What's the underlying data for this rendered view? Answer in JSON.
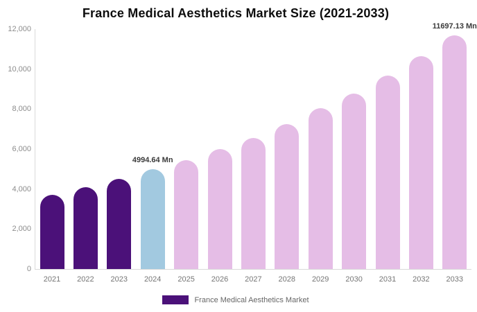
{
  "title": "France Medical Aesthetics Market Size (2021-2033)",
  "chart_data": {
    "type": "bar",
    "title": "France Medical Aesthetics Market Size (2021-2033)",
    "categories": [
      "2021",
      "2022",
      "2023",
      "2024",
      "2025",
      "2026",
      "2027",
      "2028",
      "2029",
      "2030",
      "2031",
      "2032",
      "2033"
    ],
    "values": [
      3700,
      4080,
      4500,
      4994.64,
      5450,
      6000,
      6550,
      7250,
      8030,
      8790,
      9670,
      10660,
      11697.13
    ],
    "series_name": "France Medical Aesthetics Market",
    "xlabel": "",
    "ylabel": "",
    "ylim": [
      0,
      12000
    ],
    "ytick_step": 2000,
    "ytick_labels": [
      "0",
      "2,000",
      "4,000",
      "6,000",
      "8,000",
      "10,000",
      "12,000"
    ],
    "grid": false,
    "bar_colors": {
      "historical": "#4B1179",
      "current": "#A2C9E0",
      "forecast": "#E5BDE6"
    },
    "color_roles": [
      "historical",
      "historical",
      "historical",
      "current",
      "forecast",
      "forecast",
      "forecast",
      "forecast",
      "forecast",
      "forecast",
      "forecast",
      "forecast",
      "forecast"
    ],
    "annotations": [
      {
        "category": "2024",
        "text": "4994.64 Mn"
      },
      {
        "category": "2033",
        "text": "11697.13 Mn"
      }
    ],
    "legend": {
      "position": "bottom",
      "entries": [
        {
          "label": "France Medical Aesthetics Market",
          "color": "#4B1179"
        }
      ]
    }
  }
}
